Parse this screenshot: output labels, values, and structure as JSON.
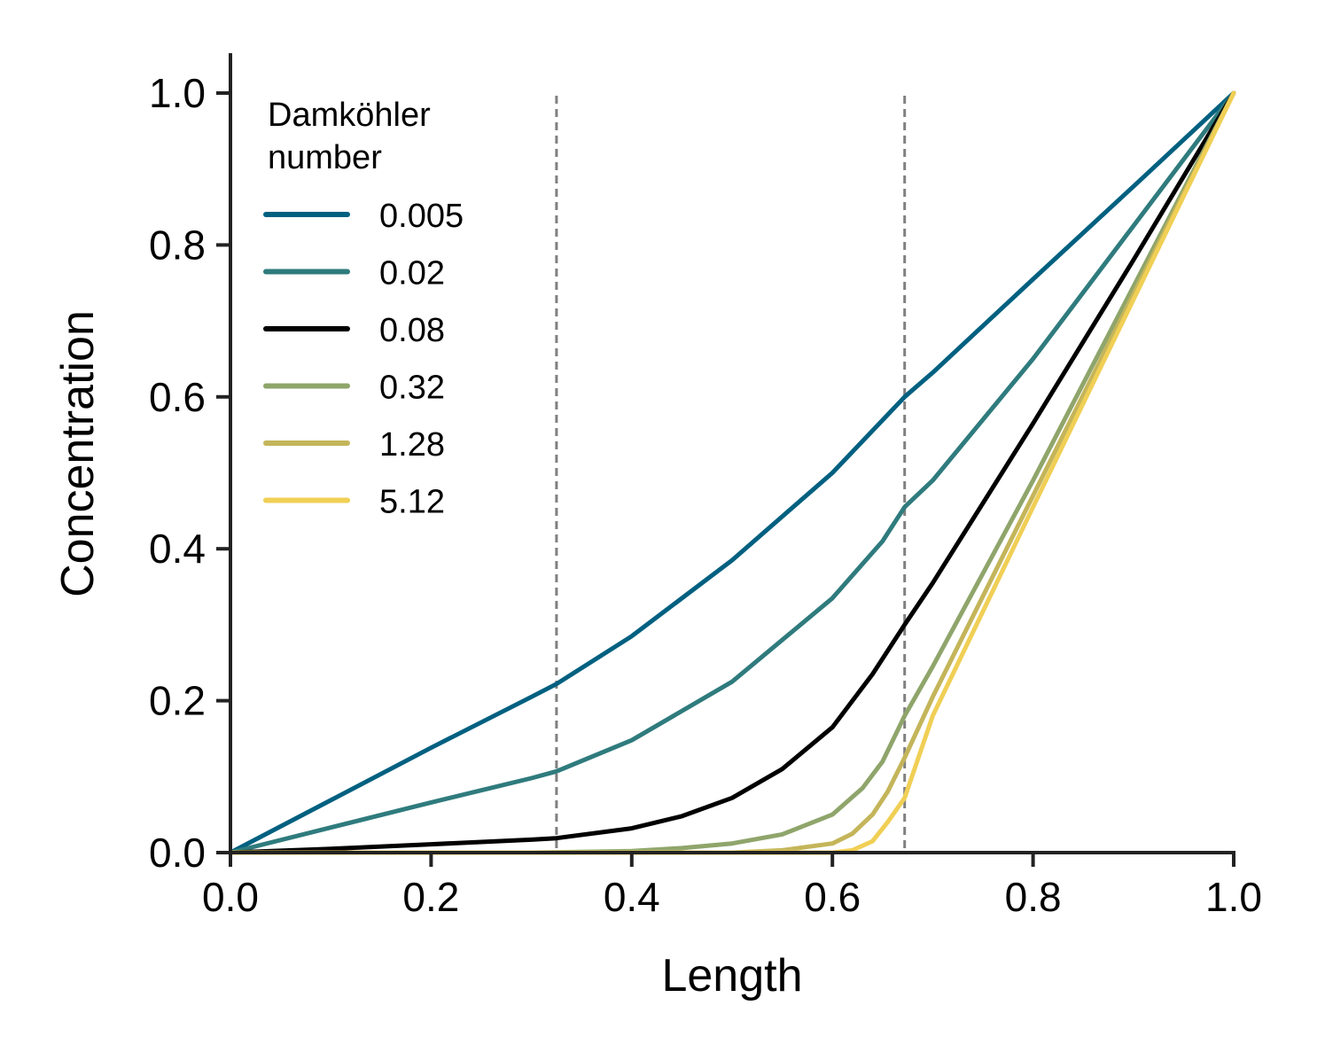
{
  "chart_data": {
    "type": "line",
    "xlabel": "Length",
    "ylabel": "Concentration",
    "xlim": [
      0.0,
      1.0
    ],
    "ylim": [
      0.0,
      1.0
    ],
    "xticks": [
      "0.0",
      "0.2",
      "0.4",
      "0.6",
      "0.8",
      "1.0"
    ],
    "yticks": [
      "0.0",
      "0.2",
      "0.4",
      "0.6",
      "0.8",
      "1.0"
    ],
    "grid": false,
    "legend_title": [
      "Damköhler",
      "number"
    ],
    "legend_position": "top-left",
    "vlines": [
      0.325,
      0.672
    ],
    "vline_color": "#808080",
    "series": [
      {
        "name": "0.005",
        "color": "#006080",
        "x": [
          0,
          0.1,
          0.2,
          0.3,
          0.325,
          0.4,
          0.5,
          0.6,
          0.672,
          0.7,
          0.8,
          0.9,
          1.0
        ],
        "y": [
          0,
          0.069,
          0.138,
          0.205,
          0.222,
          0.285,
          0.385,
          0.5,
          0.6,
          0.632,
          0.755,
          0.877,
          1.0
        ]
      },
      {
        "name": "0.02",
        "color": "#2f7b7d",
        "x": [
          0,
          0.1,
          0.2,
          0.3,
          0.325,
          0.4,
          0.5,
          0.6,
          0.65,
          0.672,
          0.7,
          0.8,
          0.9,
          1.0
        ],
        "y": [
          0,
          0.033,
          0.066,
          0.098,
          0.107,
          0.148,
          0.225,
          0.335,
          0.41,
          0.455,
          0.49,
          0.65,
          0.825,
          1.0
        ]
      },
      {
        "name": "0.08",
        "color": "#000000",
        "x": [
          0,
          0.1,
          0.2,
          0.3,
          0.325,
          0.4,
          0.45,
          0.5,
          0.55,
          0.6,
          0.64,
          0.672,
          0.7,
          0.8,
          0.9,
          1.0
        ],
        "y": [
          0,
          0.005,
          0.011,
          0.017,
          0.019,
          0.032,
          0.048,
          0.072,
          0.11,
          0.165,
          0.235,
          0.3,
          0.355,
          0.565,
          0.78,
          1.0
        ]
      },
      {
        "name": "0.32",
        "color": "#8fa56b",
        "x": [
          0,
          0.3,
          0.4,
          0.45,
          0.5,
          0.55,
          0.6,
          0.63,
          0.65,
          0.672,
          0.7,
          0.8,
          0.9,
          1.0
        ],
        "y": [
          0,
          0.0,
          0.002,
          0.006,
          0.012,
          0.024,
          0.05,
          0.085,
          0.12,
          0.18,
          0.245,
          0.49,
          0.745,
          1.0
        ]
      },
      {
        "name": "1.28",
        "color": "#c4b55a",
        "x": [
          0,
          0.5,
          0.55,
          0.6,
          0.62,
          0.64,
          0.655,
          0.672,
          0.7,
          0.8,
          0.9,
          1.0
        ],
        "y": [
          0,
          0.0,
          0.003,
          0.012,
          0.025,
          0.05,
          0.08,
          0.125,
          0.205,
          0.47,
          0.735,
          1.0
        ]
      },
      {
        "name": "5.12",
        "color": "#f0cf55",
        "x": [
          0,
          0.6,
          0.62,
          0.64,
          0.655,
          0.672,
          0.7,
          0.8,
          0.9,
          1.0
        ],
        "y": [
          0,
          0.0,
          0.003,
          0.015,
          0.04,
          0.072,
          0.18,
          0.455,
          0.728,
          1.0
        ]
      }
    ]
  }
}
